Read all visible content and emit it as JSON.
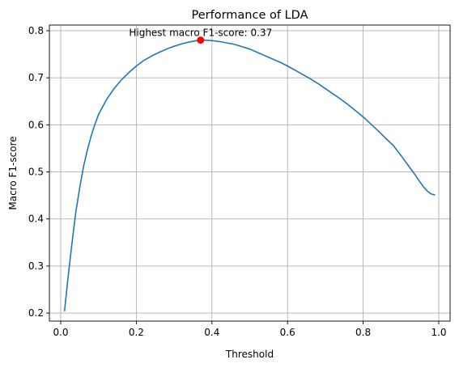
{
  "chart_data": {
    "type": "line",
    "title": "Performance of LDA",
    "xlabel": "Threshold",
    "ylabel": "Macro F1-score",
    "xlim": [
      -0.03,
      1.03
    ],
    "ylim": [
      0.183,
      0.812
    ],
    "grid": true,
    "xticks": [
      0.0,
      0.2,
      0.4,
      0.6,
      0.8,
      1.0
    ],
    "xtick_labels": [
      "0.0",
      "0.2",
      "0.4",
      "0.6",
      "0.8",
      "1.0"
    ],
    "yticks": [
      0.2,
      0.3,
      0.4,
      0.5,
      0.6,
      0.7,
      0.8
    ],
    "ytick_labels": [
      "0.2",
      "0.3",
      "0.4",
      "0.5",
      "0.6",
      "0.7",
      "0.8"
    ],
    "series": [
      {
        "color": "#1f77b4",
        "x": [
          0.01,
          0.02,
          0.03,
          0.04,
          0.05,
          0.06,
          0.07,
          0.08,
          0.09,
          0.1,
          0.12,
          0.14,
          0.16,
          0.18,
          0.2,
          0.22,
          0.24,
          0.26,
          0.28,
          0.3,
          0.32,
          0.34,
          0.36,
          0.37,
          0.38,
          0.4,
          0.42,
          0.44,
          0.46,
          0.48,
          0.5,
          0.52,
          0.54,
          0.56,
          0.58,
          0.6,
          0.62,
          0.64,
          0.66,
          0.68,
          0.7,
          0.72,
          0.74,
          0.76,
          0.78,
          0.8,
          0.82,
          0.84,
          0.86,
          0.88,
          0.9,
          0.92,
          0.94,
          0.95,
          0.96,
          0.97,
          0.98,
          0.99
        ],
        "y": [
          0.204,
          0.28,
          0.35,
          0.415,
          0.465,
          0.51,
          0.545,
          0.575,
          0.6,
          0.622,
          0.652,
          0.676,
          0.695,
          0.711,
          0.725,
          0.737,
          0.746,
          0.754,
          0.761,
          0.767,
          0.772,
          0.776,
          0.779,
          0.78,
          0.78,
          0.779,
          0.777,
          0.774,
          0.771,
          0.766,
          0.761,
          0.754,
          0.747,
          0.74,
          0.733,
          0.725,
          0.716,
          0.707,
          0.698,
          0.688,
          0.677,
          0.666,
          0.655,
          0.643,
          0.63,
          0.617,
          0.602,
          0.587,
          0.571,
          0.556,
          0.535,
          0.513,
          0.491,
          0.479,
          0.468,
          0.459,
          0.453,
          0.451
        ]
      }
    ],
    "highlight_point": {
      "x": 0.37,
      "y": 0.78,
      "color": "#ff0000"
    },
    "annotation": {
      "text": "Highest macro F1-score: 0.37",
      "x": 0.37,
      "y": 0.78
    }
  }
}
